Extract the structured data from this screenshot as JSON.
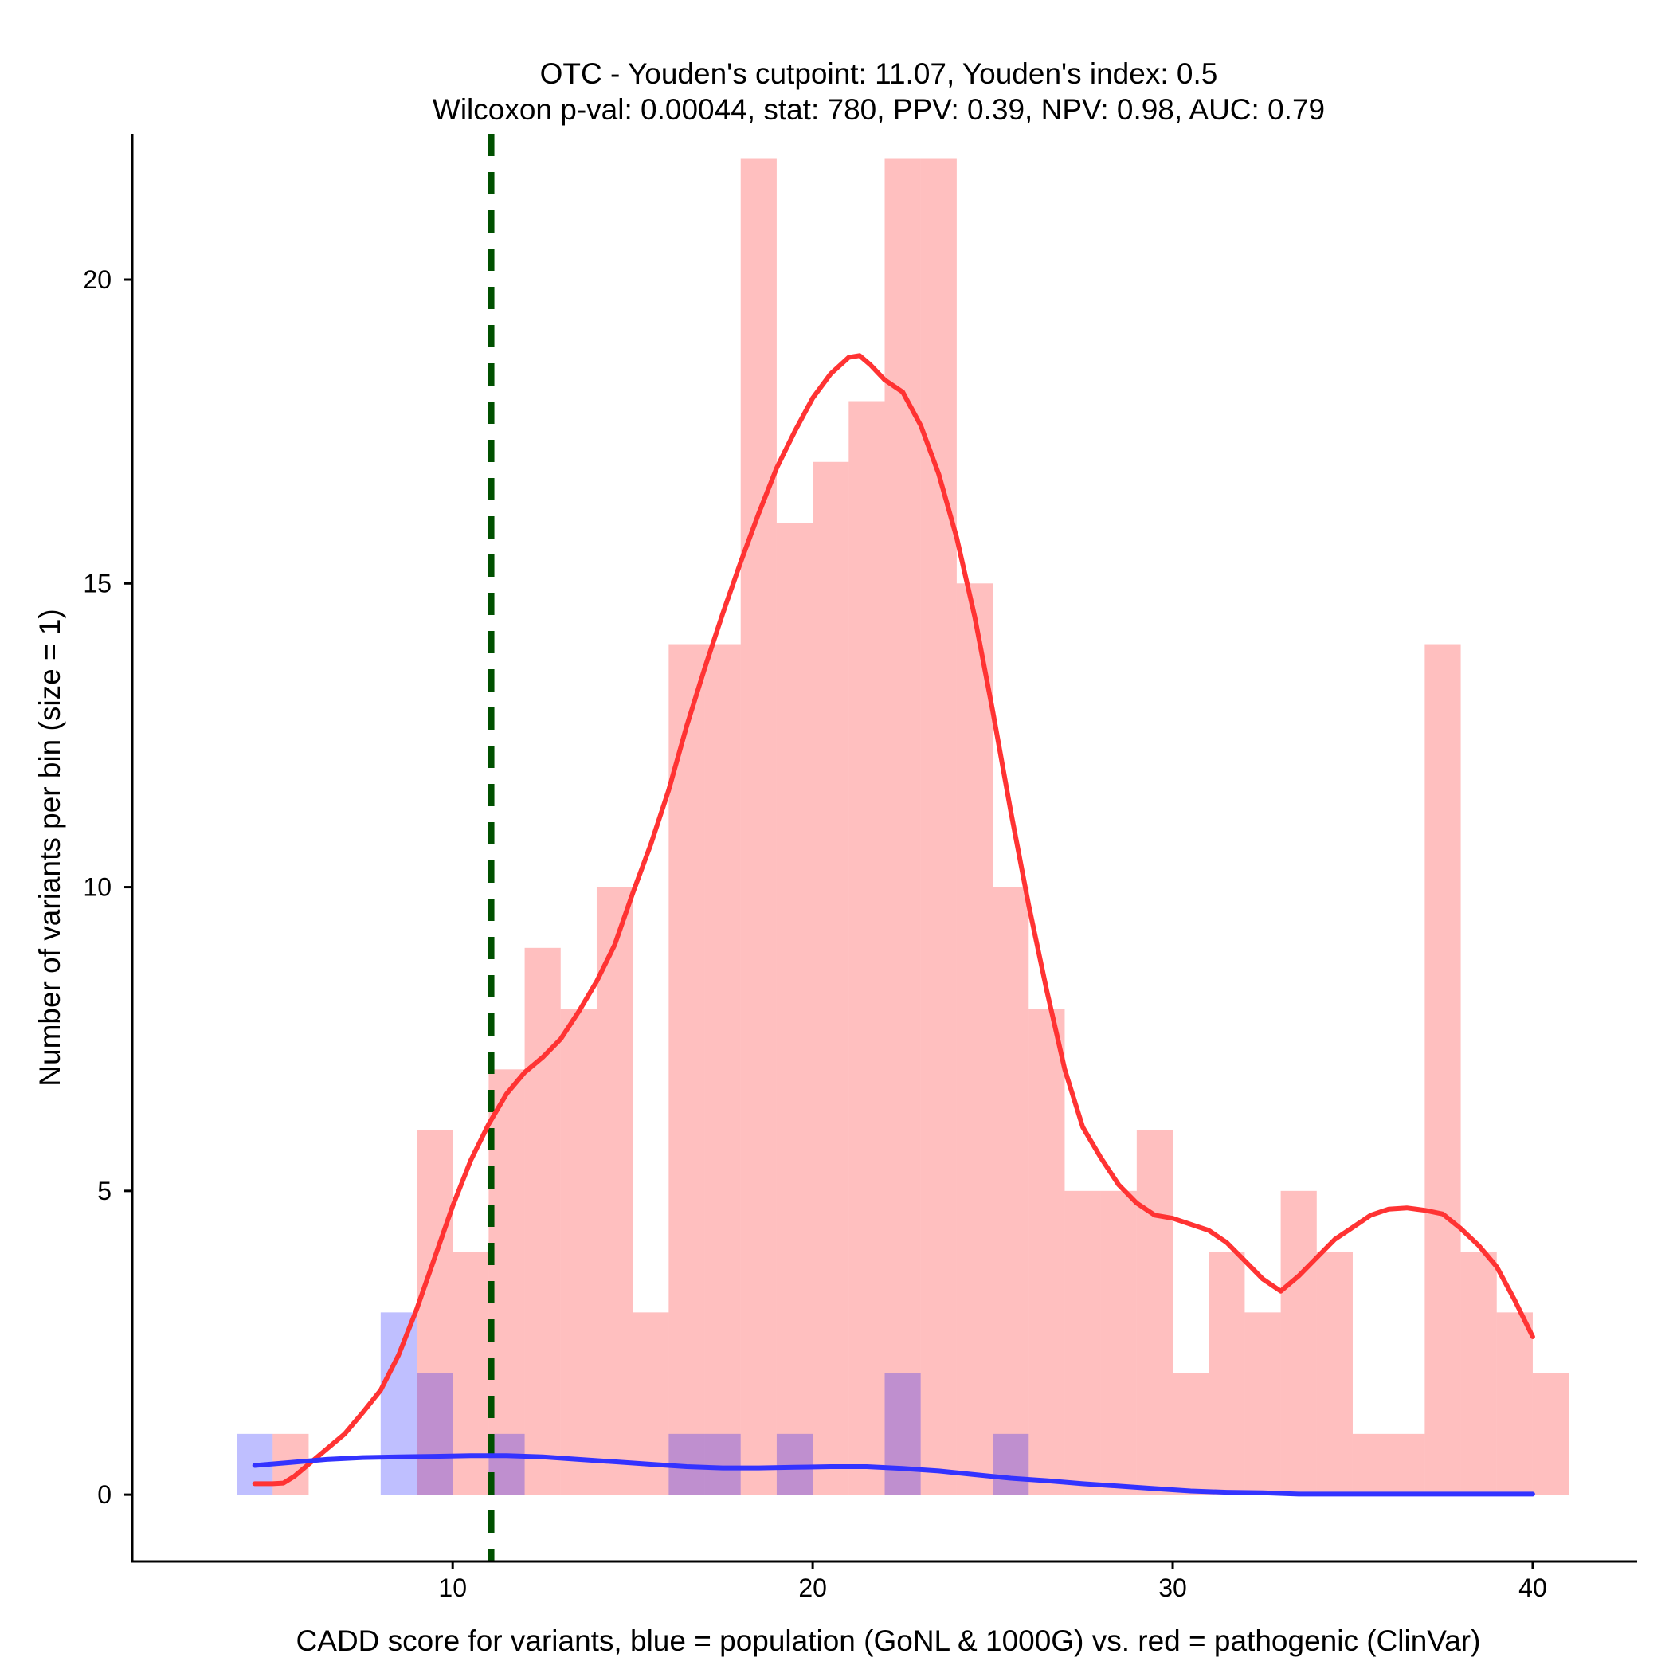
{
  "chart_data": {
    "type": "bar",
    "title": "OTC - Youden's cutpoint: 11.07, Youden's index: 0.5",
    "subtitle": "Wilcoxon p-val: 0.00044, stat: 780, PPV: 0.39, NPV: 0.98, AUC: 0.79",
    "xlabel": "CADD score for variants, blue = population (GoNL & 1000G) vs. red = pathogenic (ClinVar)",
    "ylabel": "Number of variants per bin (size = 1)",
    "xlim": [
      1.1,
      42.9
    ],
    "ylim": [
      -1.1,
      22.4
    ],
    "x_ticks": [
      10,
      20,
      30,
      40
    ],
    "y_ticks": [
      0,
      5,
      10,
      15,
      20
    ],
    "x_tick_labels": [
      "10",
      "20",
      "30",
      "40"
    ],
    "y_tick_labels": [
      "0",
      "5",
      "10",
      "15",
      "20"
    ],
    "bin_width": 1,
    "cutpoint": 11.07,
    "series": [
      {
        "name": "pathogenic (ClinVar)",
        "color": "#ff0000",
        "opacity": 0.25,
        "bin_starts": [
          5,
          9,
          10,
          11,
          12,
          13,
          14,
          15,
          16,
          17,
          18,
          19,
          20,
          21,
          22,
          23,
          24,
          25,
          26,
          27,
          28,
          29,
          30,
          31,
          32,
          33,
          34,
          35,
          36,
          37,
          38,
          39,
          40
        ],
        "values": [
          1,
          6,
          4,
          7,
          9,
          8,
          10,
          3,
          14,
          14,
          22,
          16,
          17,
          18,
          22,
          22,
          15,
          10,
          8,
          5,
          5,
          6,
          2,
          4,
          3,
          5,
          4,
          1,
          1,
          14,
          4,
          3,
          2
        ]
      },
      {
        "name": "population (GoNL & 1000G)",
        "color": "#0000ff",
        "opacity": 0.25,
        "bin_starts": [
          4,
          8,
          9,
          11,
          16,
          17,
          19,
          22,
          25
        ],
        "values": [
          1,
          3,
          2,
          1,
          1,
          1,
          1,
          2,
          1
        ]
      }
    ],
    "density_lines": [
      {
        "name": "pathogenic density",
        "color": "#ff3333",
        "points": [
          [
            4.5,
            0.18
          ],
          [
            5.0,
            0.18
          ],
          [
            5.3,
            0.19
          ],
          [
            5.6,
            0.3
          ],
          [
            6.0,
            0.5
          ],
          [
            6.5,
            0.75
          ],
          [
            7.0,
            1.0
          ],
          [
            7.5,
            1.35
          ],
          [
            8.0,
            1.72
          ],
          [
            8.5,
            2.3
          ],
          [
            9.0,
            3.05
          ],
          [
            9.5,
            3.9
          ],
          [
            10.0,
            4.75
          ],
          [
            10.5,
            5.5
          ],
          [
            11.0,
            6.1
          ],
          [
            11.5,
            6.6
          ],
          [
            12.0,
            6.95
          ],
          [
            12.5,
            7.2
          ],
          [
            13.0,
            7.5
          ],
          [
            13.5,
            7.95
          ],
          [
            14.0,
            8.45
          ],
          [
            14.5,
            9.05
          ],
          [
            15.0,
            9.9
          ],
          [
            15.5,
            10.7
          ],
          [
            16.0,
            11.6
          ],
          [
            16.5,
            12.65
          ],
          [
            17.0,
            13.6
          ],
          [
            17.5,
            14.5
          ],
          [
            18.0,
            15.35
          ],
          [
            18.5,
            16.15
          ],
          [
            19.0,
            16.9
          ],
          [
            19.5,
            17.5
          ],
          [
            20.0,
            18.05
          ],
          [
            20.5,
            18.45
          ],
          [
            21.0,
            18.72
          ],
          [
            21.3,
            18.75
          ],
          [
            21.6,
            18.6
          ],
          [
            22.0,
            18.35
          ],
          [
            22.5,
            18.15
          ],
          [
            23.0,
            17.6
          ],
          [
            23.5,
            16.8
          ],
          [
            24.0,
            15.75
          ],
          [
            24.5,
            14.45
          ],
          [
            25.0,
            12.9
          ],
          [
            25.5,
            11.25
          ],
          [
            26.0,
            9.7
          ],
          [
            26.5,
            8.3
          ],
          [
            27.0,
            7.0
          ],
          [
            27.5,
            6.05
          ],
          [
            28.0,
            5.55
          ],
          [
            28.5,
            5.1
          ],
          [
            29.0,
            4.8
          ],
          [
            29.5,
            4.6
          ],
          [
            30.0,
            4.55
          ],
          [
            30.5,
            4.45
          ],
          [
            31.0,
            4.35
          ],
          [
            31.5,
            4.15
          ],
          [
            32.0,
            3.85
          ],
          [
            32.5,
            3.55
          ],
          [
            33.0,
            3.35
          ],
          [
            33.5,
            3.6
          ],
          [
            34.0,
            3.9
          ],
          [
            34.5,
            4.2
          ],
          [
            35.0,
            4.4
          ],
          [
            35.5,
            4.6
          ],
          [
            36.0,
            4.7
          ],
          [
            36.5,
            4.72
          ],
          [
            37.0,
            4.68
          ],
          [
            37.5,
            4.62
          ],
          [
            38.0,
            4.38
          ],
          [
            38.5,
            4.1
          ],
          [
            39.0,
            3.75
          ],
          [
            39.5,
            3.2
          ],
          [
            40.0,
            2.6
          ]
        ]
      },
      {
        "name": "population density",
        "color": "#3333ff",
        "points": [
          [
            4.5,
            0.48
          ],
          [
            5.5,
            0.53
          ],
          [
            6.5,
            0.58
          ],
          [
            7.5,
            0.61
          ],
          [
            8.5,
            0.62
          ],
          [
            9.5,
            0.63
          ],
          [
            10.5,
            0.64
          ],
          [
            11.5,
            0.64
          ],
          [
            12.5,
            0.62
          ],
          [
            13.5,
            0.58
          ],
          [
            14.5,
            0.54
          ],
          [
            15.5,
            0.5
          ],
          [
            16.5,
            0.46
          ],
          [
            17.5,
            0.44
          ],
          [
            18.5,
            0.44
          ],
          [
            19.5,
            0.45
          ],
          [
            20.5,
            0.46
          ],
          [
            21.5,
            0.46
          ],
          [
            22.5,
            0.43
          ],
          [
            23.5,
            0.39
          ],
          [
            24.5,
            0.33
          ],
          [
            25.5,
            0.27
          ],
          [
            26.5,
            0.23
          ],
          [
            27.5,
            0.18
          ],
          [
            28.5,
            0.14
          ],
          [
            29.5,
            0.1
          ],
          [
            30.5,
            0.06
          ],
          [
            31.5,
            0.04
          ],
          [
            32.5,
            0.03
          ],
          [
            33.5,
            0.01
          ],
          [
            34.5,
            0.01
          ],
          [
            35.5,
            0.01
          ],
          [
            36.5,
            0.01
          ],
          [
            37.5,
            0.01
          ],
          [
            38.5,
            0.01
          ],
          [
            39.5,
            0.01
          ],
          [
            40.0,
            0.01
          ]
        ]
      }
    ],
    "cutpoint_line": {
      "name": "Youden's cutpoint",
      "color": "#005000",
      "style": "dashed"
    }
  }
}
